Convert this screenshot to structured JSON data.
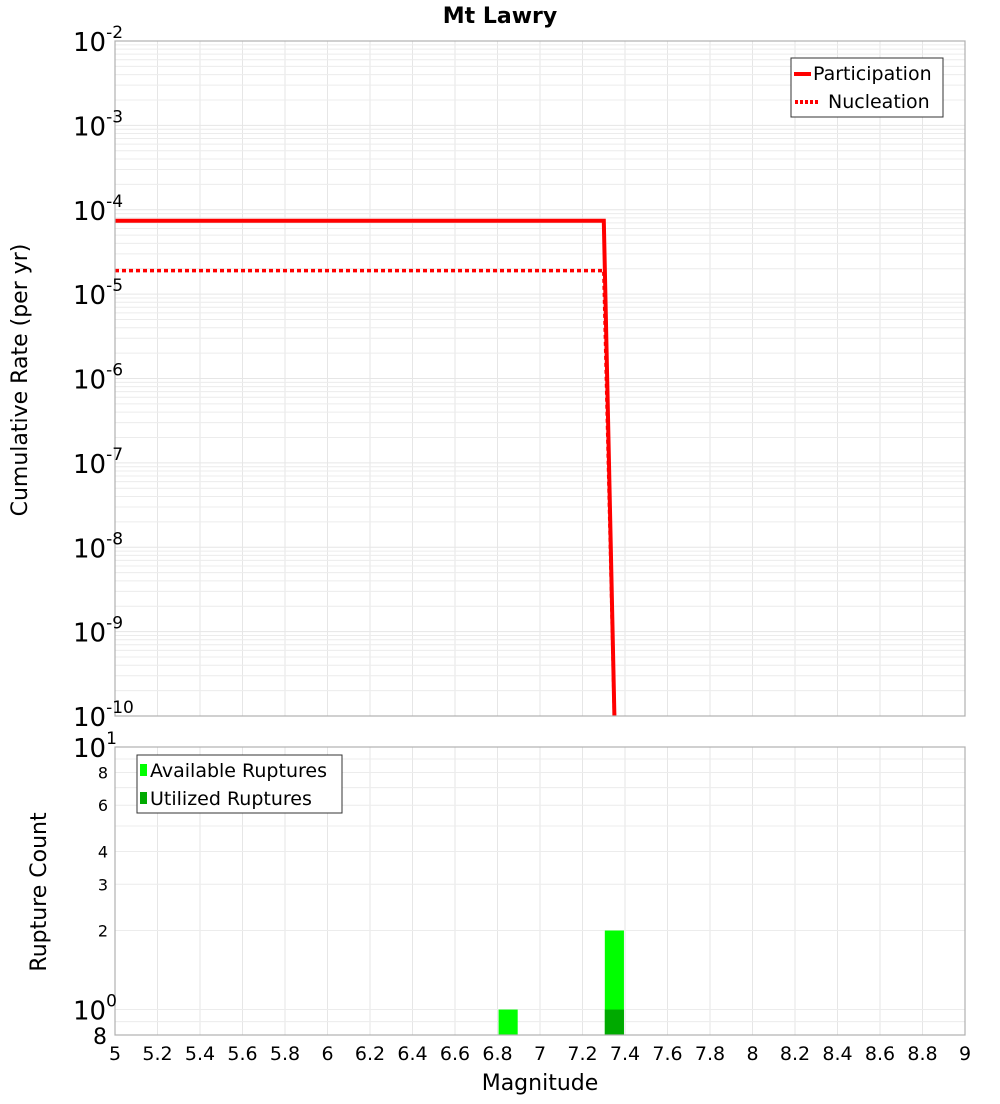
{
  "chart_data": [
    {
      "type": "line",
      "title": "Mt Lawry",
      "xlabel": "Magnitude",
      "ylabel": "Cumulative Rate (per yr)",
      "yscale": "log",
      "xlim": [
        5,
        9
      ],
      "ylim": [
        1e-10,
        0.01
      ],
      "grid": true,
      "legend_position": "upper right",
      "y_tick_labels": [
        "10^-2",
        "10^-3",
        "10^-4",
        "10^-5",
        "10^-6",
        "10^-7",
        "10^-8",
        "10^-9",
        "10^-10"
      ],
      "series": [
        {
          "name": "Participation",
          "style": "solid",
          "color": "#ff0000",
          "x": [
            5.0,
            7.3,
            7.35
          ],
          "y": [
            7.4e-05,
            7.4e-05,
            1e-10
          ]
        },
        {
          "name": "Nucleation",
          "style": "dotted",
          "color": "#ff0000",
          "x": [
            5.0,
            7.3,
            7.35
          ],
          "y": [
            1.9e-05,
            1.9e-05,
            1e-10
          ]
        }
      ]
    },
    {
      "type": "bar",
      "xlabel": "Magnitude",
      "ylabel": "Rupture Count",
      "yscale": "log",
      "xlim": [
        5,
        9
      ],
      "ylim": [
        0.8,
        10
      ],
      "grid": true,
      "legend_position": "upper left",
      "y_tick_labels": [
        "10^1",
        "8",
        "6",
        "4",
        "3",
        "2",
        "10^0",
        "8"
      ],
      "bin_width": 0.09,
      "series": [
        {
          "name": "Available Ruptures",
          "color": "#00ff00",
          "x": [
            6.85,
            7.35
          ],
          "values": [
            1,
            2
          ]
        },
        {
          "name": "Utilized Ruptures",
          "color": "#00aa00",
          "x": [
            6.85,
            7.35
          ],
          "values": [
            0,
            1
          ]
        }
      ]
    }
  ],
  "x_tick_labels": [
    "5",
    "5.2",
    "5.4",
    "5.6",
    "5.8",
    "6",
    "6.2",
    "6.4",
    "6.6",
    "6.8",
    "7",
    "7.2",
    "7.4",
    "7.6",
    "7.8",
    "8",
    "8.2",
    "8.4",
    "8.6",
    "8.8",
    "9"
  ],
  "labels": {
    "title": "Mt Lawry",
    "top_ylabel": "Cumulative Rate (per yr)",
    "bottom_ylabel": "Rupture Count",
    "xlabel": "Magnitude"
  }
}
